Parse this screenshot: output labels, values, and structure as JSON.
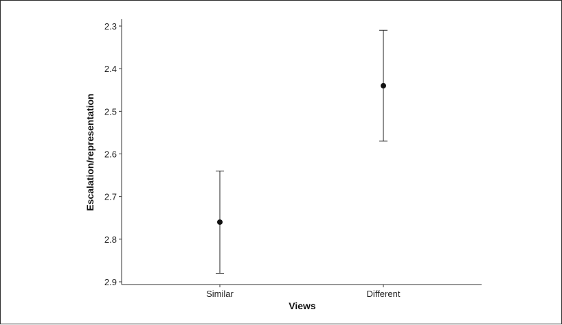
{
  "chart_data": {
    "type": "scatter",
    "title": "",
    "xlabel": "Views",
    "ylabel": "Escalation/representation",
    "categories": [
      "Similar",
      "Different"
    ],
    "y_axis_reversed": true,
    "ylim": [
      2.3,
      2.9
    ],
    "yticks": [
      "2.3",
      "2.4",
      "2.5",
      "2.6",
      "2.7",
      "2.8",
      "2.9"
    ],
    "grid": false,
    "legend": "none",
    "series": [
      {
        "values": [
          2.76,
          2.44
        ],
        "error_low": [
          2.88,
          2.57
        ],
        "error_high": [
          2.64,
          2.31
        ]
      }
    ],
    "colors": {
      "point": "#111111",
      "errorbar": "#222222",
      "axis": "#333333"
    }
  }
}
